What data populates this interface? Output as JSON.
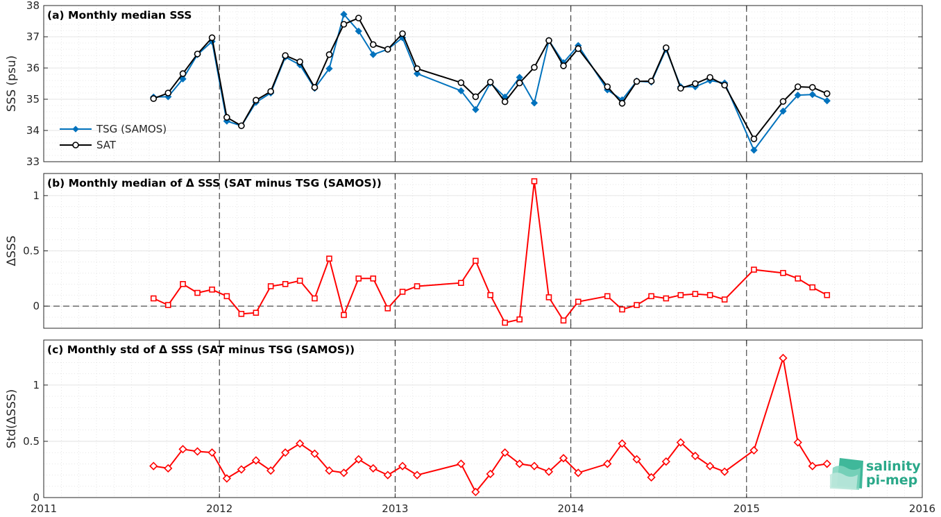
{
  "chart_data": [
    {
      "id": "a",
      "type": "line",
      "title": "(a) Monthly median SSS",
      "ylabel": "SSS (psu)",
      "xlim": [
        2011,
        2016
      ],
      "ylim": [
        33,
        38
      ],
      "yticks": [
        33,
        34,
        35,
        36,
        37,
        38
      ],
      "xticks": [
        2011,
        2012,
        2013,
        2014,
        2015,
        2016
      ],
      "grid": true,
      "legend": "lower-left",
      "series": [
        {
          "name": "TSG (SAMOS)",
          "color": "#0072bd",
          "marker": "diamond",
          "x": [
            2011.625,
            2011.708,
            2011.792,
            2011.875,
            2011.958,
            2012.042,
            2012.125,
            2012.208,
            2012.292,
            2012.375,
            2012.458,
            2012.542,
            2012.625,
            2012.708,
            2012.792,
            2012.875,
            2012.958,
            2013.042,
            2013.125,
            2013.375,
            2013.458,
            2013.542,
            2013.625,
            2013.708,
            2013.792,
            2013.875,
            2013.958,
            2014.042,
            2014.208,
            2014.292,
            2014.375,
            2014.458,
            2014.542,
            2014.625,
            2014.708,
            2014.792,
            2014.875,
            2015.042,
            2015.208,
            2015.292,
            2015.375,
            2015.458
          ],
          "y": [
            35.07,
            35.08,
            35.65,
            36.43,
            36.85,
            34.3,
            34.15,
            34.9,
            35.2,
            36.35,
            36.1,
            35.35,
            35.98,
            37.72,
            37.18,
            36.43,
            36.6,
            36.97,
            35.82,
            35.27,
            34.67,
            35.52,
            35.07,
            35.7,
            34.88,
            36.88,
            36.17,
            36.72,
            35.3,
            34.98,
            35.58,
            35.55,
            36.6,
            35.4,
            35.4,
            35.6,
            35.52,
            33.37,
            34.62,
            35.13,
            35.15,
            34.95
          ]
        },
        {
          "name": "SAT",
          "color": "#000000",
          "marker": "circle",
          "x": [
            2011.625,
            2011.708,
            2011.792,
            2011.875,
            2011.958,
            2012.042,
            2012.125,
            2012.208,
            2012.292,
            2012.375,
            2012.458,
            2012.542,
            2012.625,
            2012.708,
            2012.792,
            2012.875,
            2012.958,
            2013.042,
            2013.125,
            2013.375,
            2013.458,
            2013.542,
            2013.625,
            2013.708,
            2013.792,
            2013.875,
            2013.958,
            2014.042,
            2014.208,
            2014.292,
            2014.375,
            2014.458,
            2014.542,
            2014.625,
            2014.708,
            2014.792,
            2014.875,
            2015.042,
            2015.208,
            2015.292,
            2015.375,
            2015.458
          ],
          "y": [
            35.02,
            35.2,
            35.82,
            36.45,
            36.97,
            34.42,
            34.15,
            34.97,
            35.25,
            36.4,
            36.2,
            35.38,
            36.43,
            37.4,
            37.6,
            36.75,
            36.6,
            37.1,
            35.98,
            35.53,
            35.08,
            35.55,
            34.92,
            35.52,
            36.02,
            36.88,
            36.07,
            36.62,
            35.4,
            34.87,
            35.57,
            35.58,
            36.65,
            35.35,
            35.5,
            35.7,
            35.45,
            33.73,
            34.93,
            35.4,
            35.38,
            35.18
          ]
        }
      ]
    },
    {
      "id": "b",
      "type": "line",
      "title": "(b) Monthly median of Δ SSS (SAT minus TSG (SAMOS))",
      "ylabel": "ΔSSS",
      "xlim": [
        2011,
        2016
      ],
      "ylim": [
        -0.2,
        1.2
      ],
      "yticks": [
        0,
        0.5,
        1
      ],
      "ytick_labels": [
        "0",
        "0.5",
        "1"
      ],
      "xticks": [
        2011,
        2012,
        2013,
        2014,
        2015,
        2016
      ],
      "grid": true,
      "reference_line": 0,
      "series": [
        {
          "color": "#ff0000",
          "marker": "square",
          "x": [
            2011.625,
            2011.708,
            2011.792,
            2011.875,
            2011.958,
            2012.042,
            2012.125,
            2012.208,
            2012.292,
            2012.375,
            2012.458,
            2012.542,
            2012.625,
            2012.708,
            2012.792,
            2012.875,
            2012.958,
            2013.042,
            2013.125,
            2013.375,
            2013.458,
            2013.542,
            2013.625,
            2013.708,
            2013.792,
            2013.875,
            2013.958,
            2014.042,
            2014.208,
            2014.292,
            2014.375,
            2014.458,
            2014.542,
            2014.625,
            2014.708,
            2014.792,
            2014.875,
            2015.042,
            2015.208,
            2015.292,
            2015.375,
            2015.458
          ],
          "y": [
            0.07,
            0.01,
            0.2,
            0.12,
            0.15,
            0.09,
            -0.07,
            -0.06,
            0.18,
            0.2,
            0.23,
            0.07,
            0.43,
            -0.08,
            0.25,
            0.25,
            -0.02,
            0.13,
            0.18,
            0.21,
            0.41,
            0.1,
            -0.15,
            -0.12,
            1.13,
            0.08,
            -0.13,
            0.04,
            0.09,
            -0.03,
            0.01,
            0.09,
            0.07,
            0.1,
            0.11,
            0.1,
            0.06,
            0.33,
            0.3,
            0.25,
            0.17,
            0.1
          ]
        }
      ]
    },
    {
      "id": "c",
      "type": "line",
      "title": "(c) Monthly std of Δ SSS (SAT minus TSG (SAMOS))",
      "ylabel": "Std(ΔSSS)",
      "xlim": [
        2011,
        2016
      ],
      "ylim": [
        0,
        1.4
      ],
      "yticks": [
        0,
        0.5,
        1
      ],
      "ytick_labels": [
        "0",
        "0.5",
        "1"
      ],
      "xticks": [
        2011,
        2012,
        2013,
        2014,
        2015,
        2016
      ],
      "grid": true,
      "series": [
        {
          "color": "#ff0000",
          "marker": "diamond",
          "x": [
            2011.625,
            2011.708,
            2011.792,
            2011.875,
            2011.958,
            2012.042,
            2012.125,
            2012.208,
            2012.292,
            2012.375,
            2012.458,
            2012.542,
            2012.625,
            2012.708,
            2012.792,
            2012.875,
            2012.958,
            2013.042,
            2013.125,
            2013.375,
            2013.458,
            2013.542,
            2013.625,
            2013.708,
            2013.792,
            2013.875,
            2013.958,
            2014.042,
            2014.208,
            2014.292,
            2014.375,
            2014.458,
            2014.542,
            2014.625,
            2014.708,
            2014.792,
            2014.875,
            2015.042,
            2015.208,
            2015.292,
            2015.375,
            2015.458
          ],
          "y": [
            0.28,
            0.26,
            0.43,
            0.41,
            0.4,
            0.17,
            0.25,
            0.33,
            0.24,
            0.4,
            0.48,
            0.39,
            0.24,
            0.22,
            0.34,
            0.26,
            0.2,
            0.28,
            0.2,
            0.3,
            0.05,
            0.21,
            0.4,
            0.3,
            0.28,
            0.23,
            0.35,
            0.22,
            0.3,
            0.48,
            0.34,
            0.18,
            0.32,
            0.49,
            0.37,
            0.28,
            0.23,
            0.42,
            1.24,
            0.49,
            0.28,
            0.3
          ]
        }
      ]
    }
  ],
  "logo": {
    "line1": "salinity",
    "line2": "pi-mep",
    "color": "#2aa889"
  }
}
